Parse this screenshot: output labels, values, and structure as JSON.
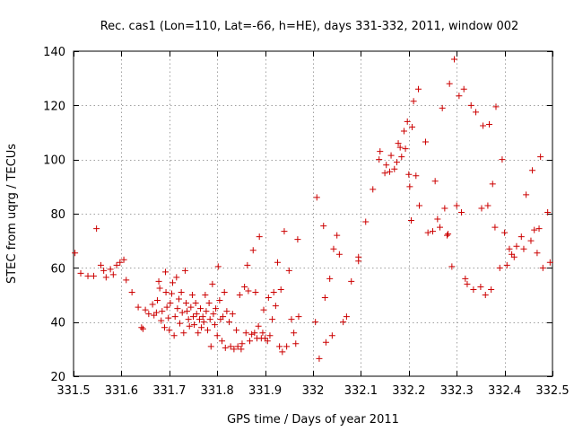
{
  "chart_data": {
    "type": "scatter",
    "title": "Rec. cas1 (Lon=110, Lat=-66, h=HE), days 331-332, 2011, window 002",
    "xlabel": "GPS time / Days of year 2011",
    "ylabel": "STEC from uqrg / TECUs",
    "xlim": [
      331.5,
      332.5
    ],
    "ylim": [
      20,
      140
    ],
    "xticks": [
      331.5,
      331.6,
      331.7,
      331.8,
      331.9,
      332.0,
      332.1,
      332.2,
      332.3,
      332.4,
      332.5
    ],
    "xtick_labels": [
      "331.5",
      "331.6",
      "331.7",
      "331.8",
      "331.9",
      "332",
      "332.1",
      "332.2",
      "332.3",
      "332.4",
      "332.5"
    ],
    "yticks": [
      20,
      40,
      60,
      80,
      100,
      120,
      140
    ],
    "ytick_labels": [
      "20",
      "40",
      "60",
      "80",
      "100",
      "120",
      "140"
    ],
    "grid": true,
    "marker": "+",
    "color": "#cc0000",
    "series": [
      {
        "name": "STEC",
        "points": [
          [
            331.503,
            65.5
          ],
          [
            331.515,
            58
          ],
          [
            331.53,
            57
          ],
          [
            331.542,
            57
          ],
          [
            331.548,
            74.5
          ],
          [
            331.557,
            61
          ],
          [
            331.563,
            59
          ],
          [
            331.568,
            56.5
          ],
          [
            331.577,
            59.5
          ],
          [
            331.583,
            57.5
          ],
          [
            331.59,
            61
          ],
          [
            331.597,
            62
          ],
          [
            331.605,
            63
          ],
          [
            331.61,
            55.5
          ],
          [
            331.622,
            51
          ],
          [
            331.635,
            45.5
          ],
          [
            331.642,
            38
          ],
          [
            331.645,
            37.5
          ],
          [
            331.65,
            44.5
          ],
          [
            331.657,
            43
          ],
          [
            331.665,
            46.5
          ],
          [
            331.668,
            42.5
          ],
          [
            331.673,
            43.5
          ],
          [
            331.675,
            48
          ],
          [
            331.678,
            55
          ],
          [
            331.68,
            52.5
          ],
          [
            331.683,
            40.5
          ],
          [
            331.685,
            44
          ],
          [
            331.69,
            38
          ],
          [
            331.692,
            58.5
          ],
          [
            331.693,
            51
          ],
          [
            331.695,
            45.5
          ],
          [
            331.698,
            41.5
          ],
          [
            331.7,
            37
          ],
          [
            331.702,
            47
          ],
          [
            331.705,
            50.5
          ],
          [
            331.707,
            54.5
          ],
          [
            331.71,
            35
          ],
          [
            331.712,
            42
          ],
          [
            331.715,
            56.5
          ],
          [
            331.717,
            45
          ],
          [
            331.72,
            48.5
          ],
          [
            331.722,
            39.5
          ],
          [
            331.725,
            51
          ],
          [
            331.727,
            43.5
          ],
          [
            331.73,
            36
          ],
          [
            331.733,
            59
          ],
          [
            331.735,
            47
          ],
          [
            331.737,
            44
          ],
          [
            331.74,
            41
          ],
          [
            331.742,
            38.5
          ],
          [
            331.745,
            45.5
          ],
          [
            331.748,
            50
          ],
          [
            331.75,
            42
          ],
          [
            331.752,
            39
          ],
          [
            331.755,
            47
          ],
          [
            331.757,
            43
          ],
          [
            331.76,
            36
          ],
          [
            331.763,
            41
          ],
          [
            331.765,
            45
          ],
          [
            331.767,
            38
          ],
          [
            331.77,
            42
          ],
          [
            331.772,
            40
          ],
          [
            331.775,
            50
          ],
          [
            331.777,
            44
          ],
          [
            331.78,
            37
          ],
          [
            331.783,
            47
          ],
          [
            331.785,
            41
          ],
          [
            331.787,
            31
          ],
          [
            331.79,
            54
          ],
          [
            331.792,
            43
          ],
          [
            331.795,
            39
          ],
          [
            331.797,
            45
          ],
          [
            331.8,
            35
          ],
          [
            331.802,
            60.5
          ],
          [
            331.805,
            48
          ],
          [
            331.807,
            41
          ],
          [
            331.81,
            33
          ],
          [
            331.812,
            42
          ],
          [
            331.815,
            51
          ],
          [
            331.817,
            30.5
          ],
          [
            331.82,
            44
          ],
          [
            331.825,
            40
          ],
          [
            331.828,
            31
          ],
          [
            331.832,
            43
          ],
          [
            331.835,
            30
          ],
          [
            331.84,
            37
          ],
          [
            331.843,
            31
          ],
          [
            331.847,
            50
          ],
          [
            331.85,
            30
          ],
          [
            331.852,
            32
          ],
          [
            331.857,
            53
          ],
          [
            331.86,
            36
          ],
          [
            331.863,
            61
          ],
          [
            331.865,
            51.5
          ],
          [
            331.868,
            33
          ],
          [
            331.872,
            35.5
          ],
          [
            331.875,
            66.5
          ],
          [
            331.878,
            36
          ],
          [
            331.88,
            51
          ],
          [
            331.883,
            34
          ],
          [
            331.886,
            38.5
          ],
          [
            331.888,
            71.5
          ],
          [
            331.892,
            34
          ],
          [
            331.895,
            36
          ],
          [
            331.897,
            44.5
          ],
          [
            331.9,
            34
          ],
          [
            331.905,
            33
          ],
          [
            331.907,
            49
          ],
          [
            331.91,
            35
          ],
          [
            331.915,
            41
          ],
          [
            331.918,
            51
          ],
          [
            331.922,
            46
          ],
          [
            331.926,
            62
          ],
          [
            331.93,
            31
          ],
          [
            331.933,
            52
          ],
          [
            331.936,
            29
          ],
          [
            331.94,
            73.5
          ],
          [
            331.945,
            31
          ],
          [
            331.95,
            59
          ],
          [
            331.955,
            41
          ],
          [
            331.96,
            36
          ],
          [
            331.964,
            32
          ],
          [
            331.968,
            70.5
          ],
          [
            331.97,
            42
          ],
          [
            332.005,
            40
          ],
          [
            332.008,
            86
          ],
          [
            332.013,
            26.5
          ],
          [
            332.022,
            75.5
          ],
          [
            332.025,
            49
          ],
          [
            332.027,
            32.5
          ],
          [
            332.035,
            56
          ],
          [
            332.04,
            35
          ],
          [
            332.043,
            67
          ],
          [
            332.05,
            72
          ],
          [
            332.055,
            65
          ],
          [
            332.063,
            40
          ],
          [
            332.07,
            42
          ],
          [
            332.08,
            55
          ],
          [
            332.095,
            64
          ],
          [
            332.095,
            62.5
          ],
          [
            332.11,
            77
          ],
          [
            332.125,
            89
          ],
          [
            332.138,
            100
          ],
          [
            332.14,
            103
          ],
          [
            332.15,
            95
          ],
          [
            332.153,
            98
          ],
          [
            332.16,
            95.5
          ],
          [
            332.163,
            101.5
          ],
          [
            332.17,
            96.5
          ],
          [
            332.175,
            99
          ],
          [
            332.178,
            106
          ],
          [
            332.182,
            104.5
          ],
          [
            332.185,
            101
          ],
          [
            332.19,
            110.5
          ],
          [
            332.193,
            104
          ],
          [
            332.197,
            114
          ],
          [
            332.2,
            94.5
          ],
          [
            332.202,
            90
          ],
          [
            332.205,
            77.5
          ],
          [
            332.207,
            112
          ],
          [
            332.21,
            121.5
          ],
          [
            332.215,
            94
          ],
          [
            332.22,
            126
          ],
          [
            332.222,
            83
          ],
          [
            332.235,
            106.5
          ],
          [
            332.24,
            73
          ],
          [
            332.25,
            73.5
          ],
          [
            332.255,
            92
          ],
          [
            332.26,
            78
          ],
          [
            332.265,
            75
          ],
          [
            332.27,
            119
          ],
          [
            332.275,
            82
          ],
          [
            332.28,
            72
          ],
          [
            332.282,
            72.5
          ],
          [
            332.285,
            128
          ],
          [
            332.29,
            60.5
          ],
          [
            332.295,
            137
          ],
          [
            332.3,
            83
          ],
          [
            332.305,
            123.5
          ],
          [
            332.31,
            80.5
          ],
          [
            332.315,
            126
          ],
          [
            332.318,
            56
          ],
          [
            332.322,
            54
          ],
          [
            332.33,
            120
          ],
          [
            332.335,
            52
          ],
          [
            332.34,
            117.5
          ],
          [
            332.35,
            53
          ],
          [
            332.352,
            82
          ],
          [
            332.355,
            112.5
          ],
          [
            332.36,
            50
          ],
          [
            332.365,
            83
          ],
          [
            332.368,
            113
          ],
          [
            332.372,
            52
          ],
          [
            332.375,
            91
          ],
          [
            332.38,
            75
          ],
          [
            332.382,
            119.5
          ],
          [
            332.39,
            60
          ],
          [
            332.395,
            100
          ],
          [
            332.4,
            73
          ],
          [
            332.405,
            61
          ],
          [
            332.41,
            67
          ],
          [
            332.415,
            65
          ],
          [
            332.42,
            64
          ],
          [
            332.425,
            68
          ],
          [
            332.435,
            71.5
          ],
          [
            332.44,
            67
          ],
          [
            332.445,
            87
          ],
          [
            332.455,
            70
          ],
          [
            332.458,
            96
          ],
          [
            332.462,
            74
          ],
          [
            332.468,
            65.5
          ],
          [
            332.472,
            74.5
          ],
          [
            332.475,
            101
          ],
          [
            332.48,
            60
          ],
          [
            332.49,
            80.5
          ],
          [
            332.495,
            62
          ]
        ]
      }
    ]
  }
}
